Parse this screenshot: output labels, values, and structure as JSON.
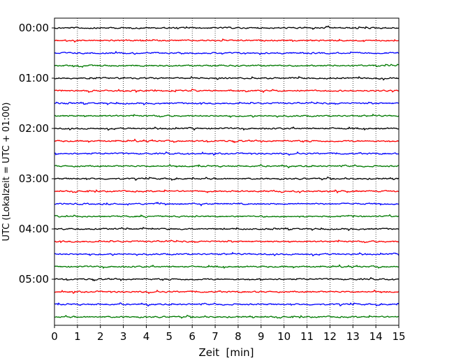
{
  "chart_data": {
    "type": "line",
    "title": "",
    "xlabel": "Zeit  [min]",
    "ylabel": "UTC (Lokalzeit = UTC + 01:00)",
    "xlim": [
      0,
      15
    ],
    "x_ticks": [
      0,
      1,
      2,
      3,
      4,
      5,
      6,
      7,
      8,
      9,
      10,
      11,
      12,
      13,
      14,
      15
    ],
    "x_tick_labels": [
      "0",
      "1",
      "2",
      "3",
      "4",
      "5",
      "6",
      "7",
      "8",
      "9",
      "10",
      "11",
      "12",
      "13",
      "14",
      "15"
    ],
    "y_tick_labels": [
      "00:00",
      "01:00",
      "02:00",
      "03:00",
      "04:00",
      "05:00"
    ],
    "grid": "vertical dotted lines at each minute",
    "trace_colors": [
      "#000000",
      "#ff0000",
      "#0000ff",
      "#007a00"
    ],
    "series": [
      {
        "start": "00:00",
        "color": "#000000"
      },
      {
        "start": "00:15",
        "color": "#ff0000"
      },
      {
        "start": "00:30",
        "color": "#0000ff"
      },
      {
        "start": "00:45",
        "color": "#007a00"
      },
      {
        "start": "01:00",
        "color": "#000000"
      },
      {
        "start": "01:15",
        "color": "#ff0000"
      },
      {
        "start": "01:30",
        "color": "#0000ff"
      },
      {
        "start": "01:45",
        "color": "#007a00"
      },
      {
        "start": "02:00",
        "color": "#000000"
      },
      {
        "start": "02:15",
        "color": "#ff0000"
      },
      {
        "start": "02:30",
        "color": "#0000ff"
      },
      {
        "start": "02:45",
        "color": "#007a00"
      },
      {
        "start": "03:00",
        "color": "#000000"
      },
      {
        "start": "03:15",
        "color": "#ff0000"
      },
      {
        "start": "03:30",
        "color": "#0000ff"
      },
      {
        "start": "03:45",
        "color": "#007a00"
      },
      {
        "start": "04:00",
        "color": "#000000"
      },
      {
        "start": "04:15",
        "color": "#ff0000"
      },
      {
        "start": "04:30",
        "color": "#0000ff"
      },
      {
        "start": "04:45",
        "color": "#007a00"
      },
      {
        "start": "05:00",
        "color": "#000000"
      },
      {
        "start": "05:15",
        "color": "#ff0000"
      },
      {
        "start": "05:30",
        "color": "#0000ff"
      },
      {
        "start": "05:45",
        "color": "#007a00"
      }
    ]
  }
}
